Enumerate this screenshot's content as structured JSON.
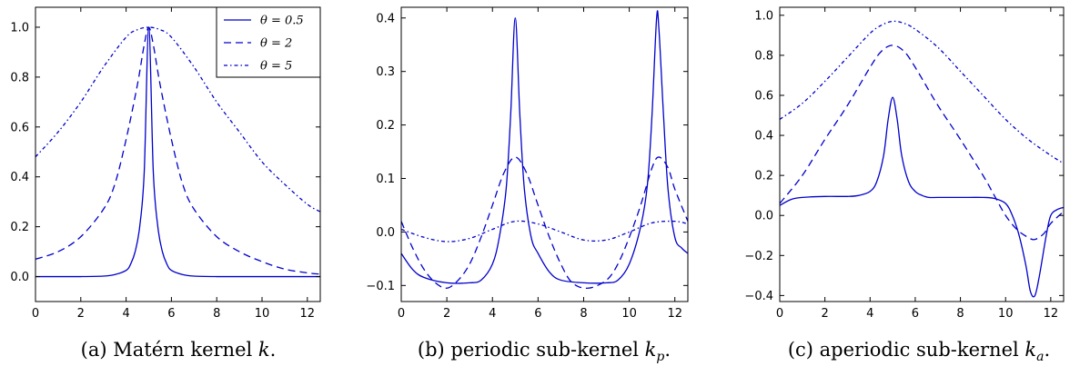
{
  "chart_data": [
    {
      "type": "line",
      "caption": "(a) Matérn kernel k.",
      "xlim": [
        0,
        12.57
      ],
      "ylim": [
        -0.1,
        1.08
      ],
      "xticks": [
        0,
        2,
        4,
        6,
        8,
        10,
        12
      ],
      "yticks": [
        0.0,
        0.2,
        0.4,
        0.6,
        0.8,
        1.0
      ],
      "ytick_labels": [
        "0.0",
        "0.2",
        "0.4",
        "0.6",
        "0.8",
        "1.0"
      ],
      "legend": {
        "placement": "top-right",
        "entries": [
          "θ = 0.5",
          "θ = 2",
          "θ = 5"
        ]
      },
      "series": [
        {
          "name": "θ = 0.5",
          "style": "solid",
          "color": "#0000cc",
          "x": [
            0,
            1,
            2,
            3,
            3.5,
            4,
            4.2,
            4.4,
            4.6,
            4.8,
            5,
            5.2,
            5.4,
            5.6,
            5.8,
            6,
            6.5,
            7,
            8,
            9,
            10,
            11,
            12.57
          ],
          "y": [
            0,
            0,
            0,
            0.002,
            0.008,
            0.025,
            0.05,
            0.1,
            0.2,
            0.42,
            1.0,
            0.42,
            0.2,
            0.1,
            0.05,
            0.025,
            0.008,
            0.002,
            0,
            0,
            0,
            0,
            0
          ]
        },
        {
          "name": "θ = 2",
          "style": "dashed",
          "color": "#0000cc",
          "x": [
            0,
            1,
            2,
            3,
            3.5,
            4,
            4.5,
            4.8,
            5,
            5.2,
            5.5,
            6,
            6.5,
            7,
            8,
            9,
            10,
            11,
            12,
            12.57
          ],
          "y": [
            0.07,
            0.1,
            0.16,
            0.27,
            0.37,
            0.55,
            0.77,
            0.93,
            1.0,
            0.93,
            0.77,
            0.55,
            0.37,
            0.27,
            0.16,
            0.1,
            0.06,
            0.03,
            0.015,
            0.01
          ]
        },
        {
          "name": "θ = 5",
          "style": "dashdot",
          "color": "#0000cc",
          "x": [
            0,
            1,
            2,
            3,
            4,
            4.5,
            5,
            5.5,
            6,
            7,
            8,
            9,
            10,
            11,
            12,
            12.57
          ],
          "y": [
            0.48,
            0.58,
            0.7,
            0.84,
            0.96,
            0.99,
            1.0,
            0.99,
            0.96,
            0.84,
            0.7,
            0.58,
            0.46,
            0.37,
            0.29,
            0.26
          ]
        }
      ]
    },
    {
      "type": "line",
      "caption": "(b) periodic sub-kernel k_p.",
      "xlim": [
        0,
        12.57
      ],
      "ylim": [
        -0.13,
        0.42
      ],
      "xticks": [
        0,
        2,
        4,
        6,
        8,
        10,
        12
      ],
      "yticks": [
        -0.1,
        0.0,
        0.1,
        0.2,
        0.3,
        0.4
      ],
      "ytick_labels": [
        "−0.1",
        "0.0",
        "0.1",
        "0.2",
        "0.3",
        "0.4"
      ],
      "series": [
        {
          "name": "θ = 0.5",
          "style": "solid",
          "color": "#0000cc",
          "x": [
            0,
            0.5,
            1,
            2,
            3,
            3.5,
            4,
            4.3,
            4.6,
            4.8,
            5,
            5.2,
            5.4,
            5.7,
            6,
            6.5,
            7,
            8,
            9,
            9.5,
            10,
            10.5,
            10.8,
            11,
            11.2,
            11.3,
            11.5,
            11.7,
            12,
            12.3,
            12.57
          ],
          "y": [
            -0.04,
            -0.07,
            -0.085,
            -0.095,
            -0.095,
            -0.09,
            -0.06,
            -0.01,
            0.08,
            0.22,
            0.4,
            0.22,
            0.08,
            -0.01,
            -0.04,
            -0.075,
            -0.09,
            -0.095,
            -0.095,
            -0.09,
            -0.06,
            0.01,
            0.09,
            0.22,
            0.4,
            0.38,
            0.22,
            0.08,
            -0.01,
            -0.03,
            -0.04
          ]
        },
        {
          "name": "θ = 2",
          "style": "dashed",
          "color": "#0000cc",
          "x": [
            0,
            0.5,
            1,
            1.5,
            2,
            2.5,
            3,
            3.5,
            4,
            4.5,
            5,
            5.5,
            6,
            6.5,
            7,
            7.5,
            8.2,
            9,
            9.5,
            10,
            10.5,
            11,
            11.3,
            11.7,
            12,
            12.57
          ],
          "y": [
            0.02,
            -0.03,
            -0.07,
            -0.095,
            -0.105,
            -0.09,
            -0.06,
            -0.01,
            0.05,
            0.11,
            0.14,
            0.11,
            0.05,
            -0.01,
            -0.06,
            -0.095,
            -0.105,
            -0.09,
            -0.06,
            -0.01,
            0.05,
            0.12,
            0.14,
            0.12,
            0.08,
            0.02
          ]
        },
        {
          "name": "θ = 5",
          "style": "dashdot",
          "color": "#0000cc",
          "x": [
            0,
            1,
            2,
            3,
            4,
            5,
            6,
            7,
            8,
            9,
            10,
            11,
            12,
            12.57
          ],
          "y": [
            0.005,
            -0.01,
            -0.018,
            -0.012,
            0.005,
            0.02,
            0.015,
            0.0,
            -0.015,
            -0.015,
            0.0,
            0.017,
            0.02,
            0.015
          ]
        }
      ]
    },
    {
      "type": "line",
      "caption": "(c) aperiodic sub-kernel k_a.",
      "xlim": [
        0,
        12.57
      ],
      "ylim": [
        -0.43,
        1.04
      ],
      "xticks": [
        0,
        2,
        4,
        6,
        8,
        10,
        12
      ],
      "yticks": [
        -0.4,
        -0.2,
        0.0,
        0.2,
        0.4,
        0.6,
        0.8,
        1.0
      ],
      "ytick_labels": [
        "−0.4",
        "−0.2",
        "0.0",
        "0.2",
        "0.4",
        "0.6",
        "0.8",
        "1.0"
      ],
      "series": [
        {
          "name": "θ = 0.5",
          "style": "solid",
          "color": "#0000cc",
          "x": [
            0,
            0.5,
            1,
            2,
            3,
            3.5,
            4,
            4.3,
            4.6,
            4.8,
            5,
            5.2,
            5.4,
            5.7,
            6,
            6.3,
            6.6,
            7,
            8,
            9,
            9.5,
            10,
            10.3,
            10.6,
            10.9,
            11.1,
            11.3,
            11.5,
            11.8,
            12,
            12.3,
            12.57
          ],
          "y": [
            0.05,
            0.08,
            0.09,
            0.095,
            0.095,
            0.1,
            0.12,
            0.17,
            0.3,
            0.48,
            0.59,
            0.48,
            0.3,
            0.17,
            0.12,
            0.1,
            0.09,
            0.09,
            0.09,
            0.09,
            0.085,
            0.06,
            0.0,
            -0.1,
            -0.25,
            -0.38,
            -0.4,
            -0.3,
            -0.1,
            0.0,
            0.03,
            0.04
          ]
        },
        {
          "name": "θ = 2",
          "style": "dashed",
          "color": "#0000cc",
          "x": [
            0,
            1,
            2,
            3,
            4,
            4.5,
            5,
            5.5,
            6,
            7,
            8,
            9,
            9.5,
            10,
            10.5,
            11,
            11.3,
            11.7,
            12,
            12.57
          ],
          "y": [
            0.06,
            0.2,
            0.38,
            0.55,
            0.74,
            0.82,
            0.85,
            0.82,
            0.74,
            0.55,
            0.38,
            0.2,
            0.1,
            0.0,
            -0.07,
            -0.11,
            -0.12,
            -0.09,
            -0.04,
            0.02
          ]
        },
        {
          "name": "θ = 5",
          "style": "dashdot",
          "color": "#0000cc",
          "x": [
            0,
            1,
            2,
            3,
            4,
            4.5,
            5,
            5.5,
            6,
            7,
            8,
            9,
            10,
            11,
            12,
            12.57
          ],
          "y": [
            0.48,
            0.56,
            0.67,
            0.79,
            0.91,
            0.95,
            0.97,
            0.96,
            0.93,
            0.84,
            0.72,
            0.6,
            0.48,
            0.38,
            0.3,
            0.26
          ]
        }
      ]
    }
  ]
}
